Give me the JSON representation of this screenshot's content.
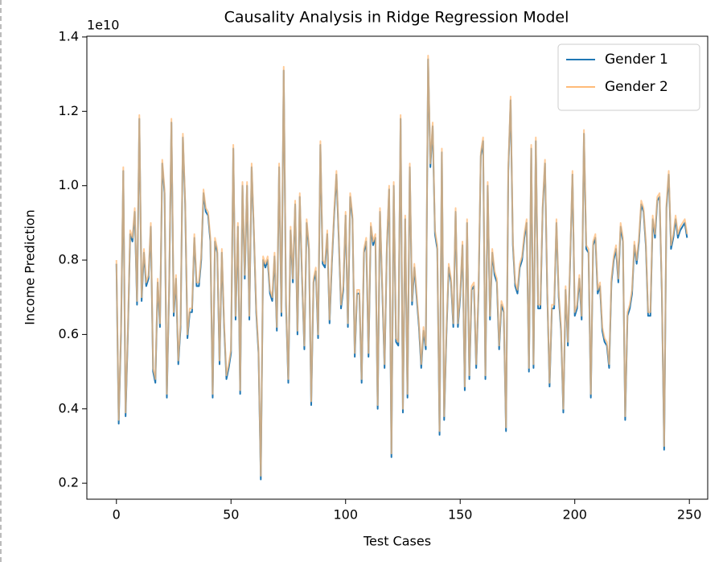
{
  "chart_data": {
    "type": "line",
    "title": "Causality Analysis in Ridge Regression Model",
    "x_label": "Test Cases",
    "y_label": "Income Prediction",
    "y_offset_label": "1e10",
    "legend_position": "upper right",
    "xlim": [
      -12.9,
      258
    ],
    "ylim": [
      0.157,
      1.402
    ],
    "xticks": [
      0,
      50,
      100,
      150,
      200,
      250
    ],
    "yticks": [
      0.2,
      0.4,
      0.6,
      0.8,
      {
        "value": 1,
        "label": "1.0"
      },
      1.2,
      1.4
    ],
    "x": [
      0,
      1,
      2,
      3,
      4,
      5,
      6,
      7,
      8,
      9,
      10,
      11,
      12,
      13,
      14,
      15,
      16,
      17,
      18,
      19,
      20,
      21,
      22,
      23,
      24,
      25,
      26,
      27,
      28,
      29,
      30,
      31,
      32,
      33,
      34,
      35,
      36,
      37,
      38,
      39,
      40,
      41,
      42,
      43,
      44,
      45,
      46,
      47,
      48,
      49,
      50,
      51,
      52,
      53,
      54,
      55,
      56,
      57,
      58,
      59,
      60,
      61,
      62,
      63,
      64,
      65,
      66,
      67,
      68,
      69,
      70,
      71,
      72,
      73,
      74,
      75,
      76,
      77,
      78,
      79,
      80,
      81,
      82,
      83,
      84,
      85,
      86,
      87,
      88,
      89,
      90,
      91,
      92,
      93,
      94,
      95,
      96,
      97,
      98,
      99,
      100,
      101,
      102,
      103,
      104,
      105,
      106,
      107,
      108,
      109,
      110,
      111,
      112,
      113,
      114,
      115,
      116,
      117,
      118,
      119,
      120,
      121,
      122,
      123,
      124,
      125,
      126,
      127,
      128,
      129,
      130,
      131,
      132,
      133,
      134,
      135,
      136,
      137,
      138,
      139,
      140,
      141,
      142,
      143,
      144,
      145,
      146,
      147,
      148,
      149,
      150,
      151,
      152,
      153,
      154,
      155,
      156,
      157,
      158,
      159,
      160,
      161,
      162,
      163,
      164,
      165,
      166,
      167,
      168,
      169,
      170,
      171,
      172,
      173,
      174,
      175,
      176,
      177,
      178,
      179,
      180,
      181,
      182,
      183,
      184,
      185,
      186,
      187,
      188,
      189,
      190,
      191,
      192,
      193,
      194,
      195,
      196,
      197,
      198,
      199,
      200,
      201,
      202,
      203,
      204,
      205,
      206,
      207,
      208,
      209,
      210,
      211,
      212,
      213,
      214,
      215,
      216,
      217,
      218,
      219,
      220,
      221,
      222,
      223,
      224,
      225,
      226,
      227,
      228,
      229,
      230,
      231,
      232,
      233,
      234,
      235,
      236,
      237,
      238,
      239,
      240,
      241,
      242,
      243,
      244,
      245,
      246,
      247,
      248,
      249
    ],
    "series": [
      {
        "name": "Gender 1",
        "color": "#1f77b4",
        "values": [
          0.79,
          0.36,
          0.6,
          1.04,
          0.38,
          0.6,
          0.87,
          0.85,
          0.93,
          0.68,
          1.18,
          0.69,
          0.82,
          0.73,
          0.75,
          0.89,
          0.5,
          0.47,
          0.74,
          0.62,
          1.06,
          0.98,
          0.43,
          0.72,
          1.17,
          0.65,
          0.75,
          0.52,
          0.62,
          1.13,
          0.95,
          0.59,
          0.66,
          0.66,
          0.86,
          0.73,
          0.73,
          0.8,
          0.98,
          0.93,
          0.92,
          0.85,
          0.43,
          0.85,
          0.82,
          0.52,
          0.82,
          0.62,
          0.48,
          0.51,
          0.55,
          1.1,
          0.64,
          0.89,
          0.44,
          1.0,
          0.75,
          1.0,
          0.64,
          1.05,
          0.87,
          0.66,
          0.55,
          0.21,
          0.8,
          0.78,
          0.8,
          0.71,
          0.69,
          0.81,
          0.61,
          1.05,
          0.65,
          1.31,
          0.68,
          0.47,
          0.88,
          0.74,
          0.95,
          0.6,
          0.97,
          0.75,
          0.56,
          0.9,
          0.83,
          0.41,
          0.74,
          0.77,
          0.59,
          1.11,
          0.79,
          0.78,
          0.87,
          0.63,
          0.79,
          0.92,
          1.03,
          0.86,
          0.67,
          0.72,
          0.92,
          0.62,
          0.97,
          0.91,
          0.54,
          0.71,
          0.71,
          0.47,
          0.82,
          0.85,
          0.54,
          0.89,
          0.84,
          0.86,
          0.4,
          0.93,
          0.72,
          0.51,
          0.83,
          0.99,
          0.27,
          1.0,
          0.58,
          0.57,
          1.18,
          0.39,
          0.91,
          0.43,
          1.05,
          0.68,
          0.78,
          0.7,
          0.62,
          0.51,
          0.61,
          0.56,
          1.34,
          1.05,
          1.16,
          0.87,
          0.83,
          0.33,
          1.09,
          0.37,
          0.6,
          0.78,
          0.74,
          0.62,
          0.93,
          0.62,
          0.7,
          0.84,
          0.45,
          0.9,
          0.48,
          0.72,
          0.73,
          0.51,
          0.71,
          1.08,
          1.12,
          0.48,
          1.0,
          0.64,
          0.82,
          0.76,
          0.74,
          0.56,
          0.68,
          0.66,
          0.34,
          1.04,
          1.23,
          0.84,
          0.73,
          0.71,
          0.78,
          0.8,
          0.86,
          0.9,
          0.5,
          1.1,
          0.51,
          1.12,
          0.67,
          0.67,
          0.94,
          1.06,
          0.71,
          0.46,
          0.67,
          0.67,
          0.9,
          0.7,
          0.61,
          0.39,
          0.72,
          0.57,
          0.8,
          1.03,
          0.65,
          0.67,
          0.75,
          0.64,
          1.14,
          0.83,
          0.82,
          0.43,
          0.84,
          0.86,
          0.71,
          0.73,
          0.61,
          0.58,
          0.57,
          0.51,
          0.74,
          0.8,
          0.83,
          0.74,
          0.89,
          0.85,
          0.37,
          0.65,
          0.67,
          0.71,
          0.84,
          0.79,
          0.85,
          0.95,
          0.93,
          0.84,
          0.65,
          0.65,
          0.91,
          0.86,
          0.96,
          0.97,
          0.71,
          0.29,
          0.94,
          1.03,
          0.83,
          0.86,
          0.91,
          0.86,
          0.88,
          0.89,
          0.9,
          0.86
        ]
      },
      {
        "name": "Gender 2",
        "color": "#ffbb78",
        "values": [
          0.8,
          0.37,
          0.61,
          1.05,
          0.39,
          0.61,
          0.88,
          0.86,
          0.94,
          0.69,
          1.19,
          0.7,
          0.83,
          0.74,
          0.76,
          0.9,
          0.51,
          0.48,
          0.75,
          0.63,
          1.07,
          0.99,
          0.44,
          0.73,
          1.18,
          0.66,
          0.76,
          0.53,
          0.63,
          1.14,
          0.96,
          0.6,
          0.67,
          0.67,
          0.87,
          0.74,
          0.74,
          0.81,
          0.99,
          0.94,
          0.93,
          0.86,
          0.44,
          0.86,
          0.83,
          0.53,
          0.83,
          0.63,
          0.49,
          0.52,
          0.56,
          1.11,
          0.65,
          0.9,
          0.45,
          1.01,
          0.76,
          1.01,
          0.65,
          1.06,
          0.88,
          0.67,
          0.56,
          0.22,
          0.81,
          0.79,
          0.81,
          0.72,
          0.7,
          0.82,
          0.62,
          1.06,
          0.66,
          1.32,
          0.69,
          0.48,
          0.89,
          0.75,
          0.96,
          0.61,
          0.98,
          0.76,
          0.57,
          0.91,
          0.84,
          0.42,
          0.75,
          0.78,
          0.6,
          1.12,
          0.8,
          0.79,
          0.88,
          0.64,
          0.8,
          0.93,
          1.04,
          0.87,
          0.68,
          0.73,
          0.93,
          0.63,
          0.98,
          0.92,
          0.55,
          0.72,
          0.72,
          0.48,
          0.83,
          0.86,
          0.55,
          0.9,
          0.85,
          0.87,
          0.41,
          0.94,
          0.73,
          0.52,
          0.84,
          1.0,
          0.28,
          1.01,
          0.59,
          0.58,
          1.19,
          0.4,
          0.92,
          0.44,
          1.06,
          0.69,
          0.79,
          0.71,
          0.63,
          0.52,
          0.62,
          0.57,
          1.35,
          1.06,
          1.17,
          0.88,
          0.84,
          0.34,
          1.1,
          0.38,
          0.61,
          0.79,
          0.75,
          0.63,
          0.94,
          0.63,
          0.71,
          0.85,
          0.46,
          0.91,
          0.49,
          0.73,
          0.74,
          0.52,
          0.72,
          1.09,
          1.13,
          0.49,
          1.01,
          0.65,
          0.83,
          0.77,
          0.75,
          0.57,
          0.69,
          0.67,
          0.35,
          1.05,
          1.24,
          0.85,
          0.74,
          0.72,
          0.79,
          0.81,
          0.87,
          0.91,
          0.51,
          1.11,
          0.52,
          1.13,
          0.68,
          0.68,
          0.95,
          1.07,
          0.72,
          0.47,
          0.68,
          0.68,
          0.91,
          0.71,
          0.62,
          0.4,
          0.73,
          0.58,
          0.81,
          1.04,
          0.66,
          0.68,
          0.76,
          0.65,
          1.15,
          0.84,
          0.83,
          0.44,
          0.85,
          0.87,
          0.72,
          0.74,
          0.62,
          0.59,
          0.58,
          0.52,
          0.75,
          0.81,
          0.84,
          0.75,
          0.9,
          0.86,
          0.38,
          0.66,
          0.68,
          0.72,
          0.85,
          0.8,
          0.86,
          0.96,
          0.94,
          0.85,
          0.66,
          0.66,
          0.92,
          0.87,
          0.97,
          0.98,
          0.72,
          0.3,
          0.95,
          1.04,
          0.84,
          0.87,
          0.92,
          0.87,
          0.89,
          0.9,
          0.91,
          0.87
        ]
      }
    ]
  }
}
